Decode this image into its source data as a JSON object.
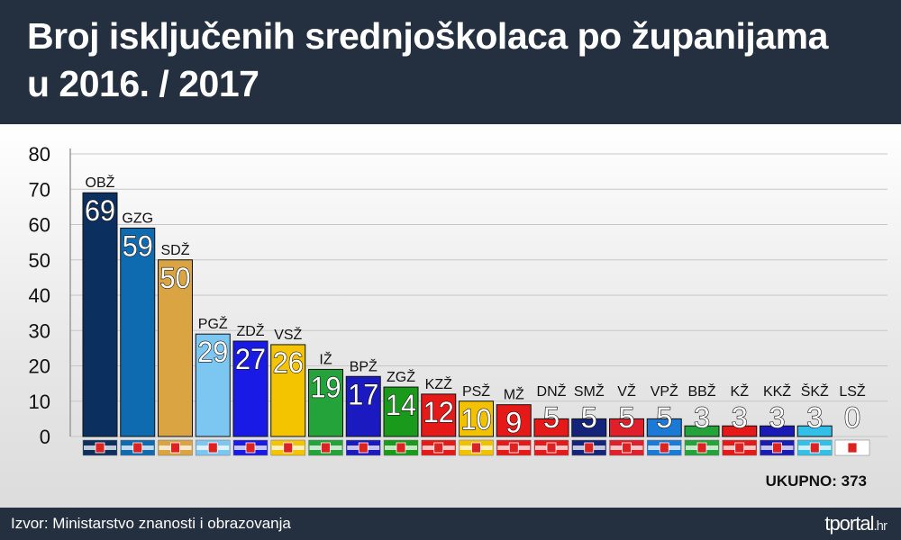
{
  "header": {
    "title_line1": "Broj isključenih srednjoškolaca po županijama",
    "title_line2": "u 2016. / 2017"
  },
  "footer": {
    "source": "Izvor: Ministarstvo znanosti i obrazovanja",
    "brand": "tportal",
    "brand_suffix": ".hr"
  },
  "total_label": "UKUPNO: 373",
  "chart_data": {
    "type": "bar",
    "title": "Broj isključenih srednjoškolaca po županijama u 2016. / 2017",
    "ylim": [
      0,
      80
    ],
    "yticks": [
      0,
      10,
      20,
      30,
      40,
      50,
      60,
      70,
      80
    ],
    "grid": true,
    "categories": [
      "OBŽ",
      "GZG",
      "SDŽ",
      "PGŽ",
      "ZDŽ",
      "VSŽ",
      "IŽ",
      "BPŽ",
      "ZGŽ",
      "KZŽ",
      "PSŽ",
      "MŽ",
      "DNŽ",
      "SMŽ",
      "VŽ",
      "VPŽ",
      "BBŽ",
      "KŽ",
      "KKŽ",
      "ŠKŽ",
      "LSŽ"
    ],
    "values": [
      69,
      59,
      50,
      29,
      27,
      26,
      19,
      17,
      14,
      12,
      10,
      9,
      5,
      5,
      5,
      5,
      3,
      3,
      3,
      3,
      0
    ],
    "colors": [
      "#0b2f5e",
      "#0e6bb0",
      "#d9a441",
      "#7cc6f2",
      "#1a1ae6",
      "#f5c400",
      "#23a33a",
      "#1a1ac0",
      "#1a9a1a",
      "#e61919",
      "#f2c200",
      "#e61919",
      "#e61919",
      "#14247a",
      "#e01f2a",
      "#1a7ad6",
      "#23a33a",
      "#e61919",
      "#1a1ab4",
      "#33c0e8",
      "#ffffff"
    ]
  }
}
